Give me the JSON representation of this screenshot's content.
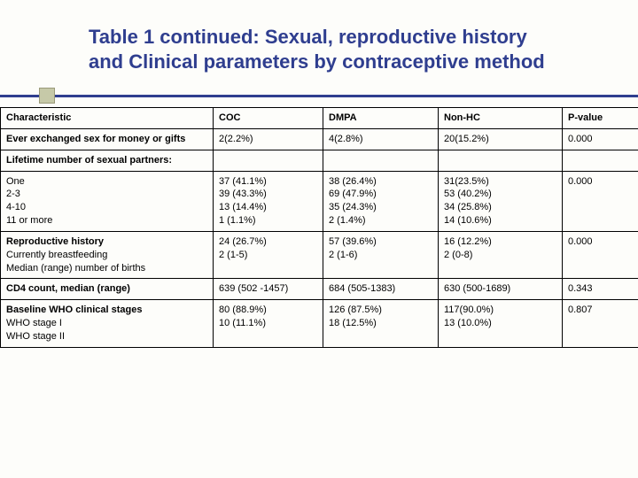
{
  "title": {
    "line1": "Table 1 continued: Sexual, reproductive history",
    "line2": "and Clinical parameters by contraceptive method"
  },
  "columns": {
    "c1": "Characteristic",
    "c2": "COC",
    "c3": "DMPA",
    "c4": "Non-HC",
    "c5": "P-value"
  },
  "rows": {
    "r0": {
      "label": "Ever exchanged sex for money or gifts",
      "coc": "2(2.2%)",
      "dmpa": "4(2.8%)",
      "nonhc": "20(15.2%)",
      "p": "0.000"
    },
    "r1": {
      "label": "Lifetime number of sexual partners:"
    },
    "r2": {
      "labels": "One\n2-3\n4-10\n11 or more",
      "coc": "37 (41.1%)\n39 (43.3%)\n13 (14.4%)\n1 (1.1%)",
      "dmpa": "38 (26.4%)\n69 (47.9%)\n35 (24.3%)\n2 (1.4%)",
      "nonhc": "31(23.5%)\n53 (40.2%)\n34 (25.8%)\n14 (10.6%)",
      "p": "0.000"
    },
    "r3": {
      "header": "Reproductive history",
      "labels": "Currently breastfeeding\nMedian (range) number of births",
      "coc": "24 (26.7%)\n 2 (1-5)",
      "dmpa": "57 (39.6%)\n 2 (1-6)",
      "nonhc": "16 (12.2%)\n 2 (0-8)",
      "p": "0.000"
    },
    "r4": {
      "label": "CD4 count, median (range)",
      "coc": "639 (502 -1457)",
      "dmpa": "684 (505-1383)",
      "nonhc": "630 (500-1689)",
      "p": "0.343"
    },
    "r5": {
      "header": "Baseline WHO clinical stages",
      "labels": "WHO stage I\nWHO stage II",
      "coc": "80 (88.9%)\n10 (11.1%)",
      "dmpa": "126 (87.5%)\n18 (12.5%)",
      "nonhc": "117(90.0%)\n13 (10.0%)",
      "p": "0.807"
    }
  },
  "style": {
    "title_color": "#2f3e8f",
    "accent_square": "#c6c9a8",
    "background": "#fdfdfa",
    "title_fontsize": 22,
    "body_fontsize": 11
  }
}
